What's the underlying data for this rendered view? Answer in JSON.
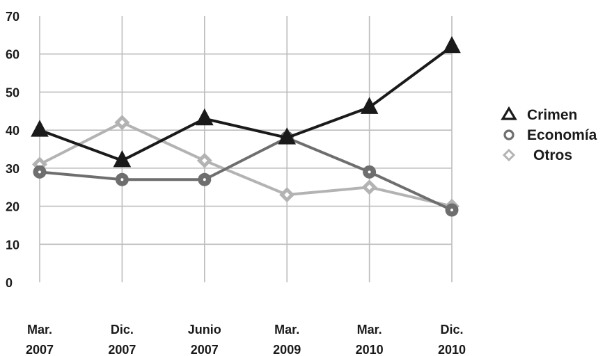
{
  "chart_data": {
    "type": "line",
    "categories": [
      [
        "Mar.",
        "2007"
      ],
      [
        "Dic.",
        "2007"
      ],
      [
        "Junio",
        "2007"
      ],
      [
        "Mar.",
        "2009"
      ],
      [
        "Mar.",
        "2010"
      ],
      [
        "Dic.",
        "2010"
      ]
    ],
    "ylim": [
      0,
      70
    ],
    "yticks": [
      "0",
      "10",
      "20",
      "30",
      "40",
      "50",
      "60",
      "70"
    ],
    "grid": true,
    "legend_position": "right",
    "series": [
      {
        "name": "Crimen",
        "values": [
          40,
          32,
          43,
          38,
          46,
          62
        ],
        "color": "#1a1a1a",
        "marker": "triangle"
      },
      {
        "name": "Economía",
        "values": [
          29,
          27,
          27,
          38,
          29,
          19
        ],
        "color": "#6e6e6e",
        "marker": "circle"
      },
      {
        "name": "Otros",
        "values": [
          31,
          42,
          32,
          23,
          25,
          20
        ],
        "color": "#b3b3b3",
        "marker": "diamond"
      }
    ]
  }
}
